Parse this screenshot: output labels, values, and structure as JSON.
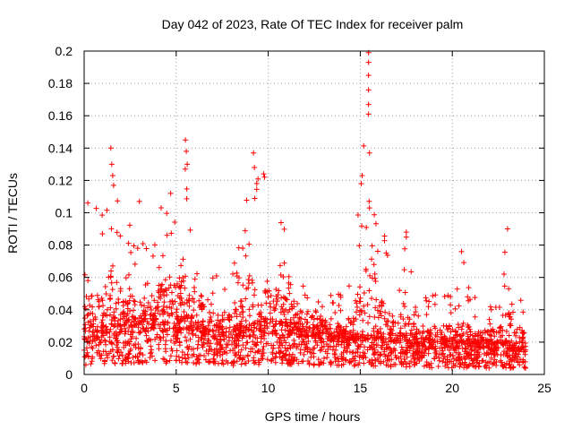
{
  "chart_data": {
    "type": "scatter",
    "title": "Day 042 of 2023, Rate Of TEC Index for receiver palm",
    "xlabel": "GPS time / hours",
    "ylabel": "ROTI / TECUs",
    "xlim": [
      0,
      25
    ],
    "ylim": [
      0,
      0.2
    ],
    "xticks": [
      0,
      5,
      10,
      15,
      20,
      25
    ],
    "xtick_labels": [
      "0",
      "5",
      "10",
      "15",
      "20",
      "25"
    ],
    "yticks": [
      0,
      0.02,
      0.04,
      0.06,
      0.08,
      0.1,
      0.12,
      0.14,
      0.16,
      0.18,
      0.2
    ],
    "ytick_labels": [
      "0",
      "0.02",
      "0.04",
      "0.06",
      "0.08",
      "0.1",
      "0.12",
      "0.14",
      "0.16",
      "0.18",
      "0.2"
    ],
    "grid": true,
    "marker": "plus",
    "series": [
      {
        "name": "ROTI",
        "color": "#ff0000",
        "envelope": {
          "x": [
            0,
            0.5,
            1,
            1.5,
            2,
            2.5,
            3,
            3.5,
            4,
            4.5,
            5,
            5.5,
            6,
            6.5,
            7,
            7.5,
            8,
            8.5,
            9,
            9.5,
            10,
            10.5,
            11,
            11.5,
            12,
            12.5,
            13,
            13.5,
            14,
            14.5,
            15,
            15.5,
            16,
            16.5,
            17,
            17.5,
            18,
            18.5,
            19,
            19.5,
            20,
            20.5,
            21,
            21.5,
            22,
            22.5,
            23,
            23.5,
            24
          ],
          "y": [
            0.085,
            0.105,
            0.1,
            0.14,
            0.1,
            0.095,
            0.107,
            0.08,
            0.108,
            0.112,
            0.11,
            0.146,
            0.1,
            0.075,
            0.065,
            0.07,
            0.07,
            0.085,
            0.137,
            0.125,
            0.1,
            0.107,
            0.09,
            0.075,
            0.07,
            0.075,
            0.065,
            0.06,
            0.05,
            0.065,
            0.123,
            0.2,
            0.103,
            0.08,
            0.065,
            0.088,
            0.055,
            0.05,
            0.06,
            0.058,
            0.05,
            0.076,
            0.05,
            0.045,
            0.055,
            0.045,
            0.09,
            0.06,
            0.045
          ]
        },
        "baseline": {
          "x": [
            0,
            2,
            4,
            6,
            8,
            10,
            12,
            14,
            16,
            18,
            20,
            22,
            24
          ],
          "y": [
            0.022,
            0.026,
            0.028,
            0.026,
            0.022,
            0.026,
            0.023,
            0.02,
            0.02,
            0.017,
            0.016,
            0.016,
            0.015
          ]
        },
        "notable_points": [
          {
            "x": 15.45,
            "y": 0.199
          },
          {
            "x": 15.45,
            "y": 0.193
          },
          {
            "x": 15.45,
            "y": 0.185
          },
          {
            "x": 15.45,
            "y": 0.176
          },
          {
            "x": 15.45,
            "y": 0.167
          },
          {
            "x": 15.45,
            "y": 0.161
          },
          {
            "x": 15.5,
            "y": 0.137
          },
          {
            "x": 15.5,
            "y": 0.103
          },
          {
            "x": 15.1,
            "y": 0.123
          },
          {
            "x": 15.05,
            "y": 0.118
          },
          {
            "x": 5.5,
            "y": 0.145
          },
          {
            "x": 5.55,
            "y": 0.138
          },
          {
            "x": 5.6,
            "y": 0.13
          },
          {
            "x": 1.45,
            "y": 0.14
          },
          {
            "x": 1.5,
            "y": 0.13
          },
          {
            "x": 1.55,
            "y": 0.123
          },
          {
            "x": 1.6,
            "y": 0.117
          },
          {
            "x": 9.2,
            "y": 0.137
          },
          {
            "x": 9.25,
            "y": 0.128
          },
          {
            "x": 9.75,
            "y": 0.124
          },
          {
            "x": 9.8,
            "y": 0.122
          },
          {
            "x": 3.0,
            "y": 0.107
          },
          {
            "x": 4.7,
            "y": 0.112
          },
          {
            "x": 0.2,
            "y": 0.106
          },
          {
            "x": 23.0,
            "y": 0.09
          },
          {
            "x": 20.5,
            "y": 0.076
          },
          {
            "x": 17.5,
            "y": 0.088
          },
          {
            "x": 17.5,
            "y": 0.085
          }
        ]
      }
    ]
  }
}
